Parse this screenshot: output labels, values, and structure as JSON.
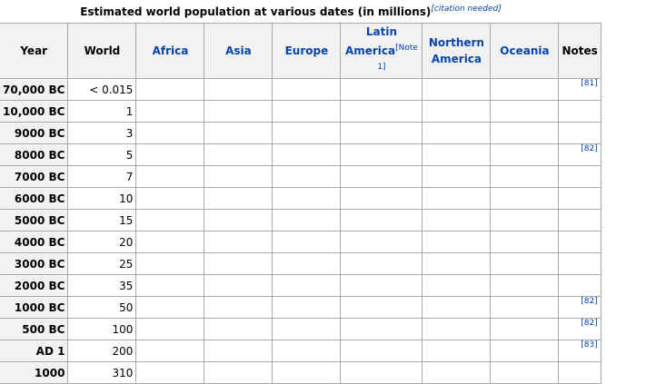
{
  "caption": {
    "text": "Estimated world population at various dates (in millions)",
    "citation": "[citation needed]"
  },
  "columns": {
    "year": "Year",
    "world": "World",
    "africa": "Africa",
    "asia": "Asia",
    "europe": "Europe",
    "latin_america": "Latin America",
    "latin_america_note": "[Note 1]",
    "northern_america": "Northern America",
    "oceania": "Oceania",
    "notes": "Notes"
  },
  "rows": [
    {
      "year": "70,000 BC",
      "world": "< 0.015",
      "note": "[81]"
    },
    {
      "year": "10,000 BC",
      "world": "1",
      "note": ""
    },
    {
      "year": "9000 BC",
      "world": "3",
      "note": ""
    },
    {
      "year": "8000 BC",
      "world": "5",
      "note": "[82]"
    },
    {
      "year": "7000 BC",
      "world": "7",
      "note": ""
    },
    {
      "year": "6000 BC",
      "world": "10",
      "note": ""
    },
    {
      "year": "5000 BC",
      "world": "15",
      "note": ""
    },
    {
      "year": "4000 BC",
      "world": "20",
      "note": ""
    },
    {
      "year": "3000 BC",
      "world": "25",
      "note": ""
    },
    {
      "year": "2000 BC",
      "world": "35",
      "note": ""
    },
    {
      "year": "1000 BC",
      "world": "50",
      "note": "[82]"
    },
    {
      "year": "500 BC",
      "world": "100",
      "note": "[82]"
    },
    {
      "year": "AD 1",
      "world": "200",
      "note": "[83]"
    },
    {
      "year": "1000",
      "world": "310",
      "note": ""
    }
  ],
  "colors": {
    "link": "#0645ad",
    "header_bg": "#f2f2f2",
    "border": "#aaaaaa"
  }
}
